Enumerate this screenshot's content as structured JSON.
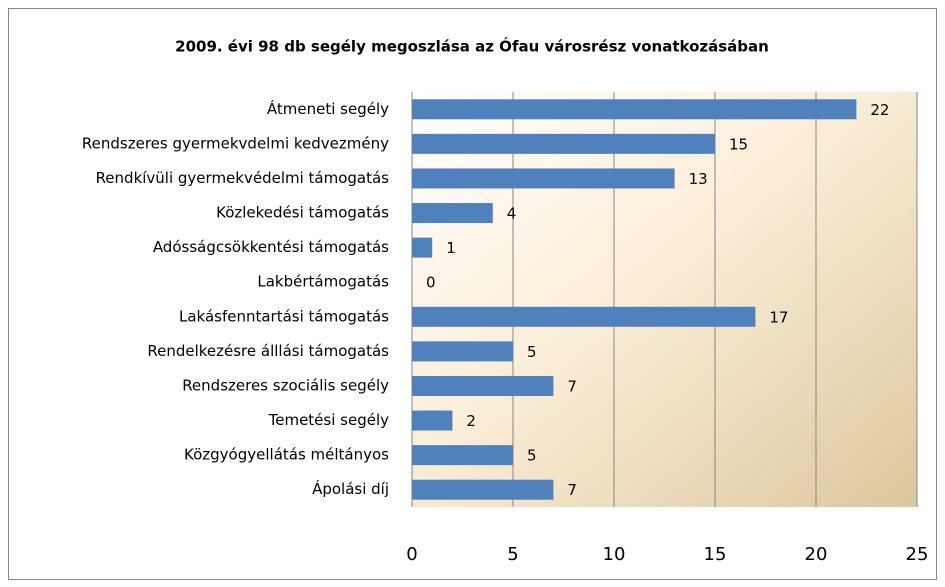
{
  "chart_data": {
    "type": "bar",
    "orientation": "horizontal",
    "title": "2009. évi  98 db segély megoszlása az Ófau városrész vonatkozásában",
    "categories": [
      "Átmeneti segély",
      "Rendszeres gyermekvdelmi kedvezmény",
      "Rendkívüli gyermekvédelmi támogatás",
      "Közlekedési támogatás",
      "Adósságcsökkentési támogatás",
      "Lakbértámogatás",
      "Lakásfenntartási támogatás",
      "Rendelkezésre álllási támogatás",
      "Rendszeres szociális segély",
      "Temetési segély",
      "Közgyógyellátás méltányos",
      "Ápolási díj"
    ],
    "values": [
      22,
      15,
      13,
      4,
      1,
      0,
      17,
      5,
      7,
      2,
      5,
      7
    ],
    "color": "#4f81bd",
    "xlim": [
      0,
      25
    ],
    "xticks": [
      0,
      5,
      10,
      15,
      20,
      25
    ],
    "grid": true
  }
}
